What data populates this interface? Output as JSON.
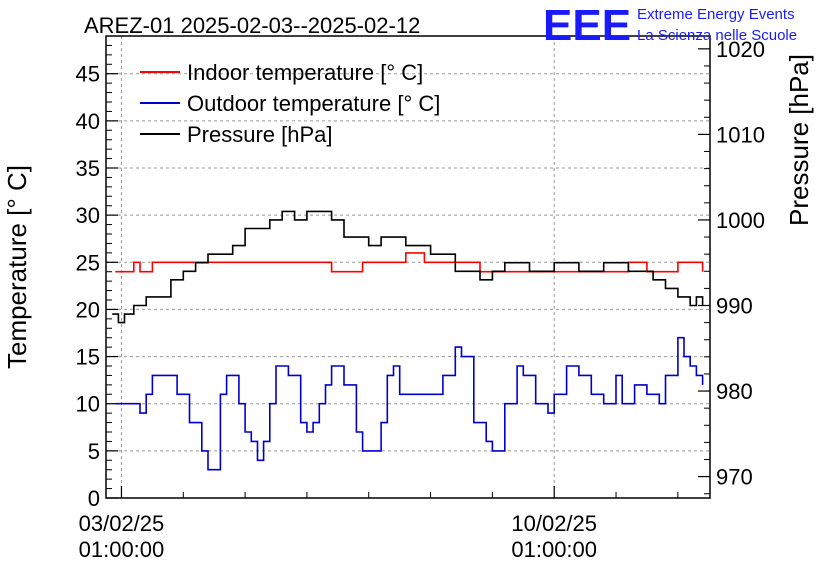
{
  "chart_data": {
    "type": "line",
    "title": "AREZ-01 2025-02-03--2025-02-12",
    "ylabel_left": "Temperature [° C]",
    "ylabel_right": "Pressure [hPa]",
    "xlabel": "",
    "ylim_left": [
      0,
      49
    ],
    "ylim_right": [
      967.5,
      1021.5
    ],
    "xlim_days": [
      -0.25,
      9.52
    ],
    "grid": true,
    "legend_position": "top-left",
    "y_ticks_left": [
      "0",
      "5",
      "10",
      "15",
      "20",
      "25",
      "30",
      "35",
      "40",
      "45"
    ],
    "y_ticks_right": [
      "970",
      "980",
      "990",
      "1000",
      "1010",
      "1020"
    ],
    "x_ticks": [
      {
        "date": "03/02/25",
        "time": "01:00:00",
        "day": 0
      },
      {
        "date": "10/02/25",
        "time": "01:00:00",
        "day": 7
      }
    ],
    "series": [
      {
        "name": "Indoor temperature [° C]",
        "axis": "left",
        "color": "#ff0000",
        "x": [
          -0.1,
          0.1,
          0.2,
          0.3,
          0.5,
          0.9,
          1.4,
          1.8,
          2.2,
          2.7,
          3.1,
          3.4,
          3.9,
          4.2,
          4.4,
          4.6,
          4.9,
          5.3,
          5.6,
          5.8,
          6.0,
          6.4,
          6.8,
          7.0,
          7.2,
          7.6,
          8.0,
          8.2,
          8.5,
          8.8,
          9.0,
          9.2,
          9.4
        ],
        "values": [
          24,
          24,
          25,
          24,
          25,
          25,
          25,
          25,
          25,
          25,
          25,
          24,
          25,
          25,
          25,
          26,
          25,
          25,
          25,
          24,
          24,
          24,
          24,
          24,
          24,
          24,
          24,
          25,
          24,
          24,
          25,
          25,
          24
        ]
      },
      {
        "name": "Outdoor temperature [° C]",
        "axis": "left",
        "color": "#0000cc",
        "x": [
          -0.1,
          0.1,
          0.2,
          0.3,
          0.4,
          0.5,
          0.7,
          0.9,
          1.1,
          1.3,
          1.4,
          1.6,
          1.7,
          1.8,
          1.9,
          2.0,
          2.1,
          2.2,
          2.3,
          2.4,
          2.5,
          2.7,
          2.9,
          3.0,
          3.1,
          3.2,
          3.3,
          3.4,
          3.6,
          3.8,
          3.9,
          4.0,
          4.2,
          4.3,
          4.4,
          4.5,
          4.7,
          4.9,
          5.0,
          5.2,
          5.4,
          5.5,
          5.7,
          5.9,
          6.0,
          6.2,
          6.4,
          6.5,
          6.7,
          6.9,
          7.0,
          7.2,
          7.4,
          7.6,
          7.8,
          8.0,
          8.1,
          8.3,
          8.5,
          8.7,
          8.8,
          8.9,
          9.0,
          9.1,
          9.2,
          9.3,
          9.4
        ],
        "values": [
          10,
          10,
          10,
          9,
          11,
          13,
          13,
          11,
          8,
          5,
          3,
          11,
          13,
          13,
          10,
          7,
          6,
          4,
          6,
          10,
          14,
          13,
          8,
          7,
          8,
          10,
          12,
          14,
          12,
          7,
          5,
          5,
          8,
          13,
          14,
          11,
          11,
          11,
          11,
          13,
          16,
          15,
          8,
          6,
          5,
          10,
          14,
          13,
          10,
          9,
          11,
          14,
          13,
          11,
          10,
          13,
          10,
          12,
          11,
          10,
          13,
          13,
          17,
          15,
          14,
          13,
          12
        ]
      },
      {
        "name": "Pressure [hPa]",
        "axis": "right",
        "color": "#000000",
        "x": [
          -0.15,
          -0.05,
          0.05,
          0.2,
          0.4,
          0.6,
          0.8,
          1.0,
          1.2,
          1.4,
          1.6,
          1.8,
          2.0,
          2.2,
          2.4,
          2.6,
          2.8,
          3.0,
          3.2,
          3.4,
          3.6,
          3.8,
          4.0,
          4.2,
          4.4,
          4.6,
          4.8,
          5.0,
          5.2,
          5.4,
          5.6,
          5.8,
          6.0,
          6.2,
          6.4,
          6.6,
          6.8,
          7.0,
          7.2,
          7.4,
          7.6,
          7.8,
          8.0,
          8.2,
          8.4,
          8.6,
          8.8,
          9.0,
          9.2,
          9.3,
          9.4
        ],
        "values": [
          989,
          988,
          989,
          990,
          991,
          991,
          993,
          994,
          995,
          996,
          996,
          997,
          999,
          999,
          1000,
          1001,
          1000,
          1001,
          1001,
          1000,
          998,
          998,
          997,
          998,
          998,
          997,
          997,
          996,
          996,
          994,
          994,
          993,
          994,
          995,
          995,
          994,
          994,
          995,
          995,
          994,
          994,
          995,
          995,
          994,
          994,
          993,
          992,
          991,
          990,
          991,
          990
        ]
      }
    ]
  },
  "logo": {
    "mark": "EEE",
    "line1": "Extreme Energy Events",
    "line2": "La Scienza nelle Scuole"
  }
}
